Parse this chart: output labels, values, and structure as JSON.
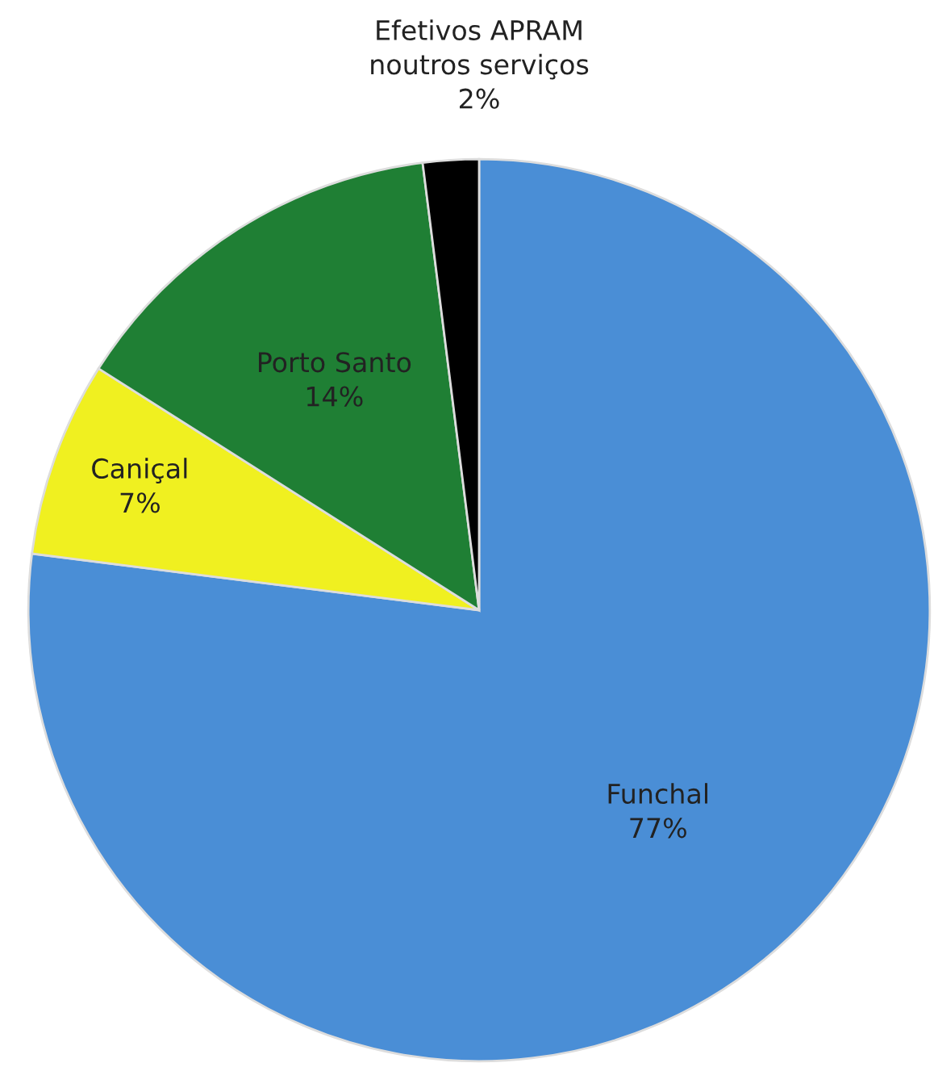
{
  "chart_data": {
    "type": "pie",
    "categories": [
      "Funchal",
      "Caniçal",
      "Porto Santo",
      "Efetivos APRAM noutros serviços"
    ],
    "values": [
      77,
      7,
      14,
      2
    ],
    "colors": [
      "#4a8ed6",
      "#f0f020",
      "#1f7f34",
      "#000000"
    ],
    "value_labels": [
      "77%",
      "7%",
      "14%",
      "2%"
    ]
  }
}
